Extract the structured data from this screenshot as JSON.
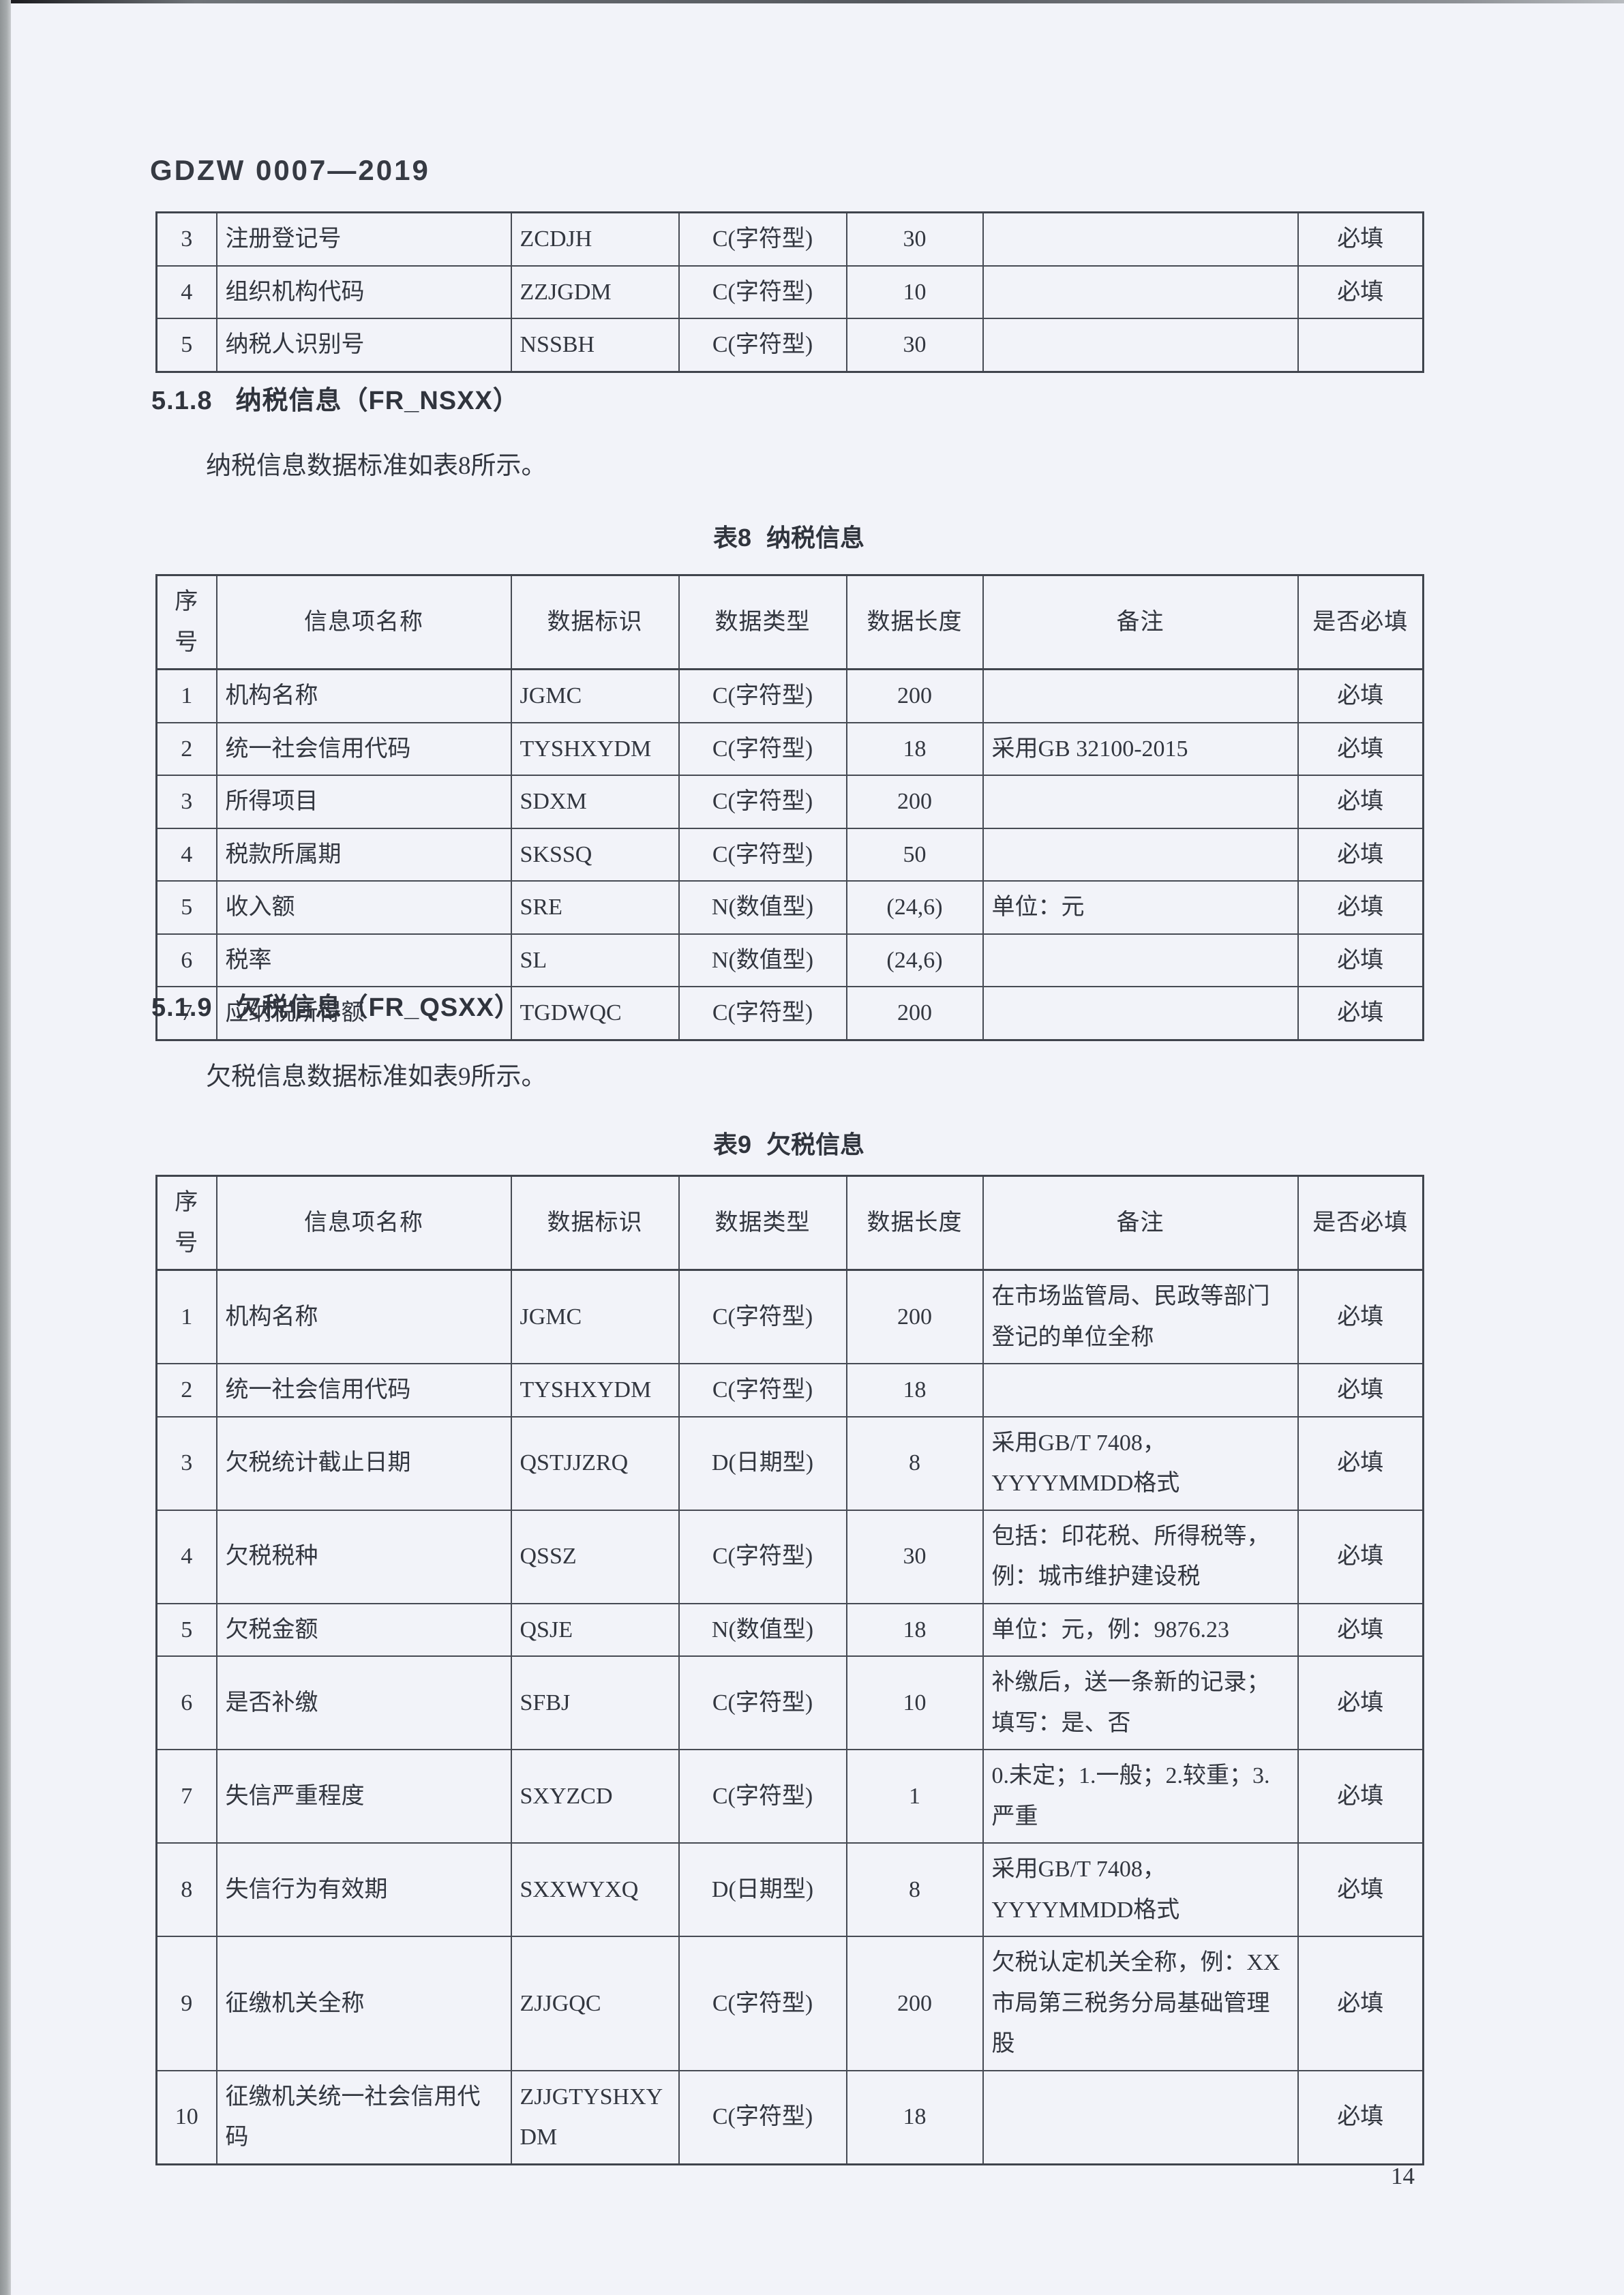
{
  "page": {
    "doc_code": "GDZW 0007—2019",
    "page_number": "14"
  },
  "tables_common": {
    "headers": [
      "序号",
      "信息项名称",
      "数据标识",
      "数据类型",
      "数据长度",
      "备注",
      "是否必填"
    ]
  },
  "top_table": {
    "rows": [
      {
        "seq": "3",
        "name": "注册登记号",
        "id": "ZCDJH",
        "type": "C(字符型)",
        "len": "30",
        "remark": "",
        "required": "必填"
      },
      {
        "seq": "4",
        "name": "组织机构代码",
        "id": "ZZJGDM",
        "type": "C(字符型)",
        "len": "10",
        "remark": "",
        "required": "必填"
      },
      {
        "seq": "5",
        "name": "纳税人识别号",
        "id": "NSSBH",
        "type": "C(字符型)",
        "len": "30",
        "remark": "",
        "required": ""
      }
    ]
  },
  "section_518": {
    "heading_num": "5.1.8",
    "heading_title": "纳税信息（FR_NSXX）",
    "intro": "纳税信息数据标准如表8所示。",
    "caption_num": "表8",
    "caption_title": "纳税信息",
    "rows": [
      {
        "seq": "1",
        "name": "机构名称",
        "id": "JGMC",
        "type": "C(字符型)",
        "len": "200",
        "remark": "",
        "required": "必填"
      },
      {
        "seq": "2",
        "name": "统一社会信用代码",
        "id": "TYSHXYDM",
        "type": "C(字符型)",
        "len": "18",
        "remark": "采用GB 32100-2015",
        "required": "必填"
      },
      {
        "seq": "3",
        "name": "所得项目",
        "id": "SDXM",
        "type": "C(字符型)",
        "len": "200",
        "remark": "",
        "required": "必填"
      },
      {
        "seq": "4",
        "name": "税款所属期",
        "id": "SKSSQ",
        "type": "C(字符型)",
        "len": "50",
        "remark": "",
        "required": "必填"
      },
      {
        "seq": "5",
        "name": "收入额",
        "id": "SRE",
        "type": "N(数值型)",
        "len": "(24,6)",
        "remark": "单位：元",
        "required": "必填"
      },
      {
        "seq": "6",
        "name": "税率",
        "id": "SL",
        "type": "N(数值型)",
        "len": "(24,6)",
        "remark": "",
        "required": "必填"
      },
      {
        "seq": "7",
        "name": "应纳税所得额",
        "id": "TGDWQC",
        "type": "C(字符型)",
        "len": "200",
        "remark": "",
        "required": "必填"
      }
    ]
  },
  "section_519": {
    "heading_num": "5.1.9",
    "heading_title": "欠税信息（FR_QSXX）",
    "intro": "欠税信息数据标准如表9所示。",
    "caption_num": "表9",
    "caption_title": "欠税信息",
    "rows": [
      {
        "seq": "1",
        "name": "机构名称",
        "id": "JGMC",
        "type": "C(字符型)",
        "len": "200",
        "remark": "在市场监管局、民政等部门登记的单位全称",
        "required": "必填"
      },
      {
        "seq": "2",
        "name": "统一社会信用代码",
        "id": "TYSHXYDM",
        "type": "C(字符型)",
        "len": "18",
        "remark": "",
        "required": "必填"
      },
      {
        "seq": "3",
        "name": "欠税统计截止日期",
        "id": "QSTJJZRQ",
        "type": "D(日期型)",
        "len": "8",
        "remark": "采用GB/T 7408，YYYYMMDD格式",
        "required": "必填"
      },
      {
        "seq": "4",
        "name": "欠税税种",
        "id": "QSSZ",
        "type": "C(字符型)",
        "len": "30",
        "remark": "包括：印花税、所得税等，例：城市维护建设税",
        "required": "必填"
      },
      {
        "seq": "5",
        "name": "欠税金额",
        "id": "QSJE",
        "type": "N(数值型)",
        "len": "18",
        "remark": "单位：元，例：9876.23",
        "required": "必填"
      },
      {
        "seq": "6",
        "name": "是否补缴",
        "id": "SFBJ",
        "type": "C(字符型)",
        "len": "10",
        "remark": "补缴后，送一条新的记录；填写：是、否",
        "required": "必填"
      },
      {
        "seq": "7",
        "name": "失信严重程度",
        "id": "SXYZCD",
        "type": "C(字符型)",
        "len": "1",
        "remark": "0.未定；1.一般；2.较重；3.严重",
        "required": "必填"
      },
      {
        "seq": "8",
        "name": "失信行为有效期",
        "id": "SXXWYXQ",
        "type": "D(日期型)",
        "len": "8",
        "remark": "采用GB/T 7408，YYYYMMDD格式",
        "required": "必填"
      },
      {
        "seq": "9",
        "name": "征缴机关全称",
        "id": "ZJJGQC",
        "type": "C(字符型)",
        "len": "200",
        "remark": "欠税认定机关全称，例：XX市局第三税务分局基础管理股",
        "required": "必填"
      },
      {
        "seq": "10",
        "name": "征缴机关统一社会信用代码",
        "id": "ZJJGTYSHXYDM",
        "type": "C(字符型)",
        "len": "18",
        "remark": "",
        "required": "必填"
      }
    ]
  }
}
